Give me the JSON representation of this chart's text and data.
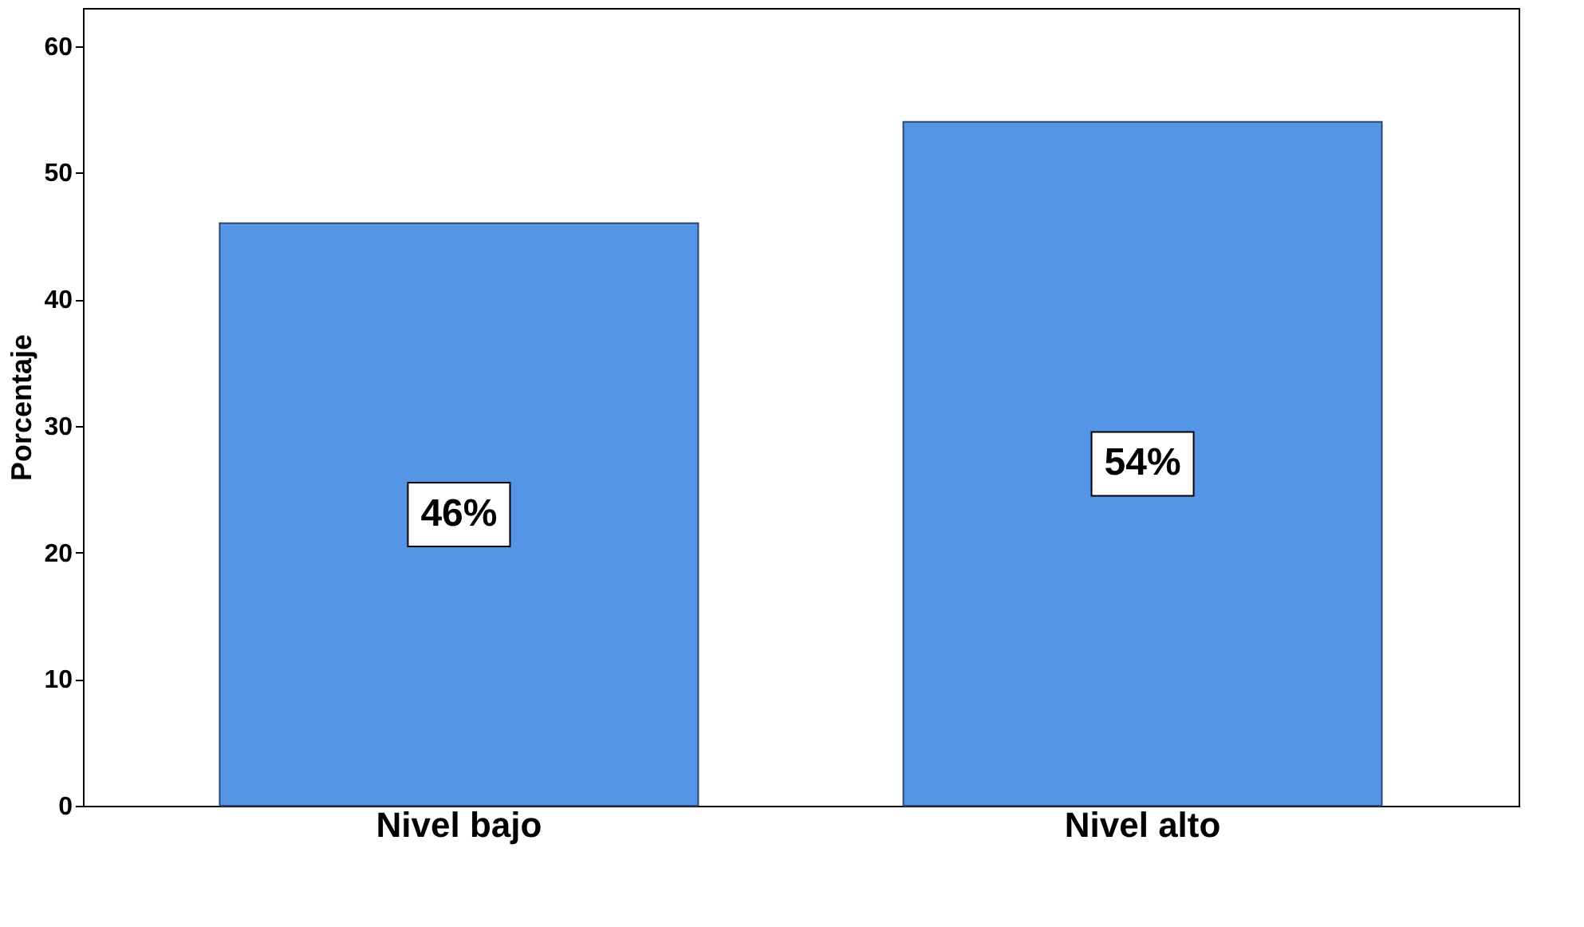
{
  "chart_data": {
    "type": "bar",
    "ylabel": "Porcentaje",
    "categories": [
      "Nivel bajo",
      "Nivel alto"
    ],
    "values": [
      46,
      54
    ],
    "color": "#5595e5",
    "value_labels": [
      "46%",
      "54%"
    ],
    "ylim": [
      0,
      63
    ],
    "yticks": [
      0,
      10,
      20,
      30,
      40,
      50,
      60
    ],
    "grid": false
  }
}
